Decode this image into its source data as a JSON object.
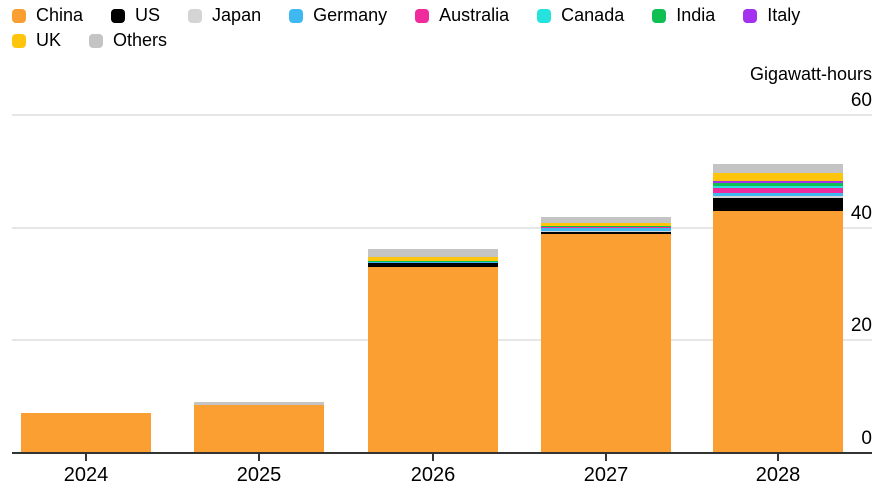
{
  "axis": {
    "unit_label": "Gigawatt-hours",
    "ytick_labels": [
      "60",
      "40",
      "20",
      "0"
    ]
  },
  "legend": {
    "rows": [
      [
        "China",
        "US",
        "Japan",
        "Germany",
        "Australia",
        "Canada",
        "India",
        "Italy"
      ],
      [
        "UK",
        "Others"
      ]
    ]
  },
  "chart_data": {
    "type": "bar",
    "stacked": true,
    "title": "",
    "ylabel": "Gigawatt-hours",
    "ylim": [
      0,
      60
    ],
    "yticks": [
      0,
      20,
      40,
      60
    ],
    "grid": "horizontal",
    "legend_position": "top-left",
    "categories": [
      "2024",
      "2025",
      "2026",
      "2027",
      "2028"
    ],
    "series": [
      {
        "name": "China",
        "color": "#FB9F33",
        "values": [
          7.1,
          8.5,
          33.0,
          38.8,
          42.9
        ]
      },
      {
        "name": "US",
        "color": "#000000",
        "values": [
          0,
          0,
          0.7,
          0.5,
          2.4
        ]
      },
      {
        "name": "Japan",
        "color": "#D4D4D4",
        "values": [
          0,
          0,
          0.05,
          0.1,
          0.3
        ]
      },
      {
        "name": "Germany",
        "color": "#3FB8F2",
        "values": [
          0,
          0,
          0.1,
          0.5,
          0.5
        ]
      },
      {
        "name": "Australia",
        "color": "#F02B9B",
        "values": [
          0,
          0,
          0.1,
          0.15,
          1.0
        ]
      },
      {
        "name": "Canada",
        "color": "#25E3DC",
        "values": [
          0,
          0,
          0.05,
          0.1,
          0.3
        ]
      },
      {
        "name": "India",
        "color": "#10BF51",
        "values": [
          0,
          0,
          0.1,
          0.1,
          0.5
        ]
      },
      {
        "name": "Italy",
        "color": "#A430F0",
        "values": [
          0,
          0,
          0.05,
          0.1,
          0.4
        ]
      },
      {
        "name": "UK",
        "color": "#FFC50D",
        "values": [
          0,
          0,
          0.7,
          0.5,
          1.4
        ]
      },
      {
        "name": "Others",
        "color": "#C4C4C4",
        "values": [
          0,
          0.5,
          1.4,
          1.1,
          1.6
        ]
      }
    ]
  },
  "styles": {
    "gridline_color": "#E6E6E6",
    "axis_color": "#333333",
    "background": "#FFFFFF",
    "text_color": "#000000"
  }
}
